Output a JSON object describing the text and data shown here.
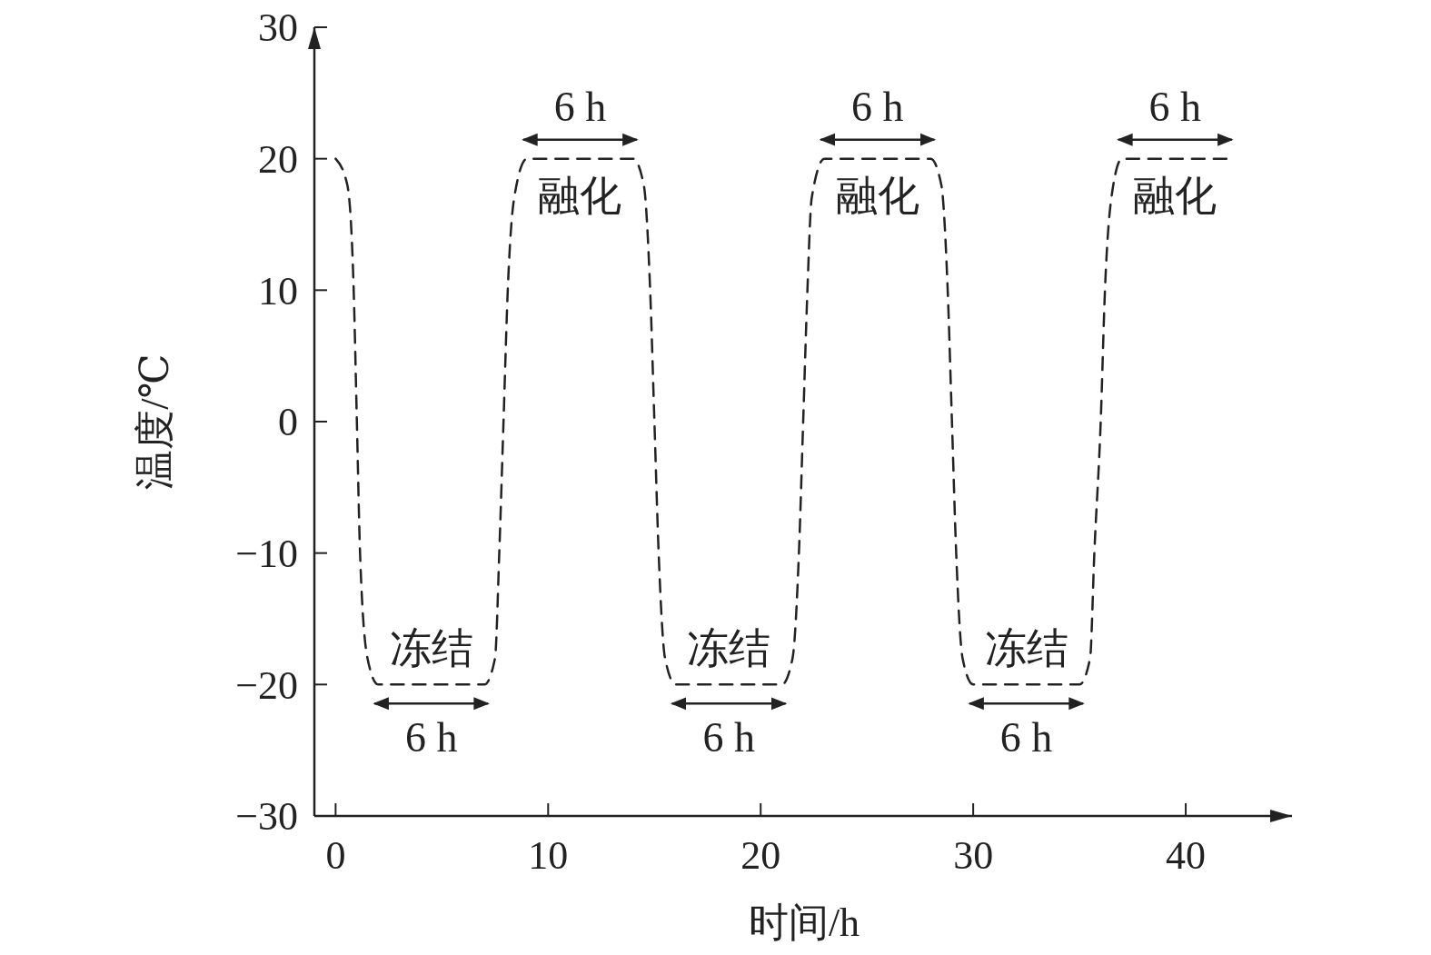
{
  "chart_data": {
    "type": "line",
    "xlabel": "时间/h",
    "ylabel": "温度/℃",
    "xlim": [
      -1,
      45
    ],
    "ylim": [
      -30,
      30
    ],
    "xticks": [
      0,
      10,
      20,
      30,
      40
    ],
    "yticks": [
      30,
      20,
      10,
      0,
      {
        "value": -10,
        "label": "−10"
      },
      {
        "value": -20,
        "label": "−20"
      },
      {
        "value": -30,
        "label": "−30"
      }
    ],
    "grid": false,
    "marker": "none",
    "line_style": "dashed",
    "series": [
      {
        "color": "#222222",
        "x": [
          0,
          0.55,
          0.85,
          1,
          1.15,
          1.5,
          2,
          7,
          7.5,
          7.7,
          7.9,
          8.1,
          8.4,
          9,
          14,
          14.5,
          14.8,
          15,
          15.2,
          15.5,
          16,
          21,
          21.5,
          21.8,
          22,
          22.2,
          22.4,
          23,
          28,
          28.5,
          28.8,
          29,
          29.2,
          29.5,
          30,
          35,
          35.5,
          35.7,
          36,
          36.2,
          36.5,
          37,
          42
        ],
        "values": [
          20,
          18,
          10,
          0,
          -10,
          -18,
          -20,
          -20,
          -18,
          -10,
          0,
          10,
          17,
          20,
          20,
          18,
          10,
          0,
          -10,
          -18,
          -20,
          -20,
          -18,
          -10,
          0,
          10,
          17,
          20,
          20,
          18,
          10,
          0,
          -10,
          -18,
          -20,
          -20,
          -18,
          -10,
          0,
          10,
          17,
          20,
          20
        ]
      }
    ],
    "annotations": [
      "冻结",
      "6 h",
      "融化",
      "6 h",
      "冻结",
      "6 h",
      "融化",
      "6 h",
      "冻结",
      "6 h",
      "融化",
      "6 h"
    ]
  }
}
